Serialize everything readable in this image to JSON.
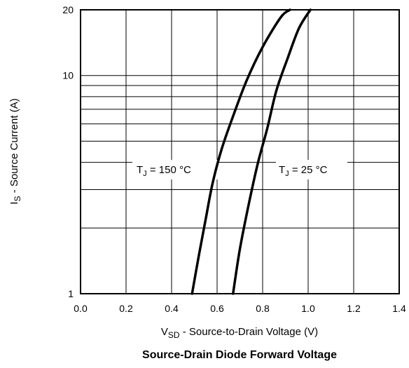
{
  "chart_data": {
    "type": "line",
    "title": "Source-Drain Diode Forward Voltage",
    "xlabel": {
      "main": "V",
      "sub": "SD",
      "rest": " - Source-to-Drain Voltage (V)"
    },
    "ylabel": {
      "main": "I",
      "sub": "S",
      "rest": " - Source Current (A)"
    },
    "xlim": [
      0.0,
      1.4
    ],
    "ylim": [
      1,
      20
    ],
    "yscale": "log",
    "grid": true,
    "x_ticks": [
      "0.0",
      "0.2",
      "0.4",
      "0.6",
      "0.8",
      "1.0",
      "1.2",
      "1.4"
    ],
    "y_ticks": [
      "1",
      "10",
      "20"
    ],
    "series": [
      {
        "label": {
          "main": "T",
          "sub": "J",
          "rest": " = 150 °C"
        },
        "points": [
          [
            0.49,
            1
          ],
          [
            0.52,
            1.5
          ],
          [
            0.55,
            2.2
          ],
          [
            0.58,
            3.2
          ],
          [
            0.62,
            4.6
          ],
          [
            0.67,
            6.5
          ],
          [
            0.73,
            9.5
          ],
          [
            0.8,
            13.5
          ],
          [
            0.88,
            18.5
          ],
          [
            0.92,
            20
          ]
        ]
      },
      {
        "label": {
          "main": "T",
          "sub": "J",
          "rest": " = 25 °C"
        },
        "points": [
          [
            0.67,
            1
          ],
          [
            0.7,
            1.6
          ],
          [
            0.74,
            2.6
          ],
          [
            0.78,
            4.0
          ],
          [
            0.82,
            5.7
          ],
          [
            0.86,
            8.5
          ],
          [
            0.91,
            12.0
          ],
          [
            0.96,
            16.5
          ],
          [
            1.01,
            20
          ]
        ]
      }
    ]
  }
}
